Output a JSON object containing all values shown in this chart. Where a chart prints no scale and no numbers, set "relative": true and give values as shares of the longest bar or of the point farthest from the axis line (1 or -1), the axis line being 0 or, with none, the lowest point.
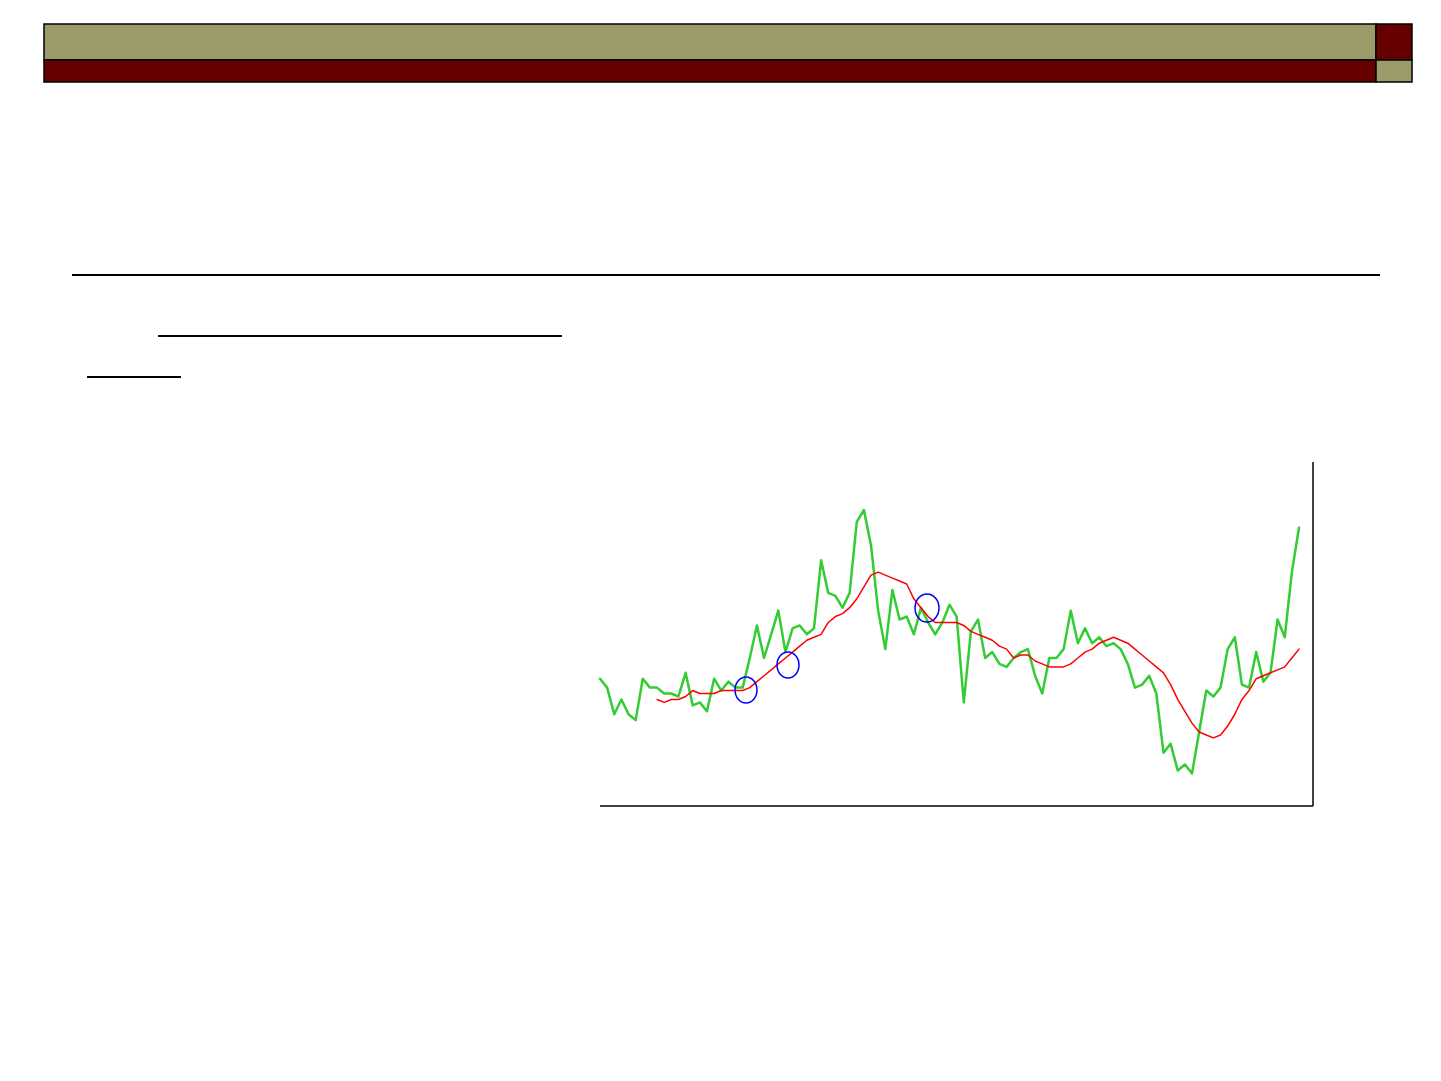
{
  "chart_data": {
    "type": "line",
    "relative": true,
    "line_style": "solid",
    "categories": [
      null,
      null,
      null,
      null,
      null,
      null,
      null,
      null,
      null,
      null,
      null,
      null,
      null,
      null,
      null,
      null,
      null,
      null,
      null,
      null,
      null,
      null,
      null,
      null,
      null,
      null,
      null,
      null,
      null,
      null,
      null,
      null,
      null,
      null,
      null,
      null,
      null,
      null,
      null,
      null,
      null,
      null,
      null,
      null,
      null,
      null,
      null,
      null,
      null,
      null,
      null,
      null,
      null,
      null,
      null,
      null,
      null,
      null,
      null,
      null,
      null,
      null,
      null,
      null,
      null,
      null,
      null,
      null,
      null,
      null,
      null,
      null,
      null,
      null,
      null,
      null,
      null,
      null,
      null,
      null,
      null,
      null,
      null,
      null,
      null,
      null,
      null,
      null,
      null,
      null,
      null,
      null,
      null,
      null,
      null,
      null,
      null,
      null,
      null
    ],
    "series": [
      {
        "color": "#33cc33",
        "values": [
          0.43,
          0.4,
          0.31,
          0.36,
          0.31,
          0.29,
          0.43,
          0.4,
          0.4,
          0.38,
          0.38,
          0.37,
          0.45,
          0.34,
          0.35,
          0.32,
          0.43,
          0.39,
          0.42,
          0.4,
          0.4,
          0.5,
          0.61,
          0.5,
          0.58,
          0.66,
          0.52,
          0.6,
          0.61,
          0.58,
          0.6,
          0.83,
          0.72,
          0.71,
          0.67,
          0.72,
          0.96,
          1.0,
          0.88,
          0.66,
          0.53,
          0.73,
          0.63,
          0.64,
          0.58,
          0.67,
          0.62,
          0.58,
          0.62,
          0.68,
          0.64,
          0.35,
          0.59,
          0.63,
          0.5,
          0.52,
          0.48,
          0.47,
          0.5,
          0.52,
          0.53,
          0.44,
          0.38,
          0.5,
          0.5,
          0.53,
          0.66,
          0.55,
          0.6,
          0.55,
          0.57,
          0.54,
          0.55,
          0.53,
          0.48,
          0.4,
          0.41,
          0.44,
          0.38,
          0.18,
          0.21,
          0.12,
          0.14,
          0.11,
          0.25,
          0.39,
          0.37,
          0.4,
          0.53,
          0.57,
          0.41,
          0.4,
          0.52,
          0.42,
          0.45,
          0.63,
          0.57,
          0.79,
          0.94
        ]
      },
      {
        "color": "#ff0000",
        "values": [
          null,
          null,
          null,
          null,
          null,
          null,
          null,
          null,
          0.36,
          0.35,
          0.36,
          0.36,
          0.37,
          0.39,
          0.38,
          0.38,
          0.38,
          0.39,
          0.39,
          0.39,
          0.39,
          0.4,
          0.42,
          0.44,
          0.46,
          0.48,
          0.5,
          0.52,
          0.54,
          0.56,
          0.57,
          0.58,
          0.62,
          0.64,
          0.65,
          0.67,
          0.7,
          0.74,
          0.78,
          0.79,
          0.78,
          0.77,
          0.76,
          0.75,
          0.7,
          0.67,
          0.64,
          0.62,
          0.62,
          0.62,
          0.62,
          0.61,
          0.59,
          0.58,
          0.57,
          0.56,
          0.54,
          0.53,
          0.5,
          0.51,
          0.51,
          0.49,
          0.48,
          0.47,
          0.47,
          0.47,
          0.48,
          0.5,
          0.52,
          0.53,
          0.55,
          0.56,
          0.57,
          0.56,
          0.55,
          0.53,
          0.51,
          0.49,
          0.47,
          0.45,
          0.41,
          0.36,
          0.32,
          0.28,
          0.25,
          0.24,
          0.23,
          0.24,
          0.27,
          0.31,
          0.36,
          0.39,
          0.43,
          0.44,
          0.45,
          0.46,
          0.47,
          0.5,
          0.53
        ]
      }
    ]
  }
}
